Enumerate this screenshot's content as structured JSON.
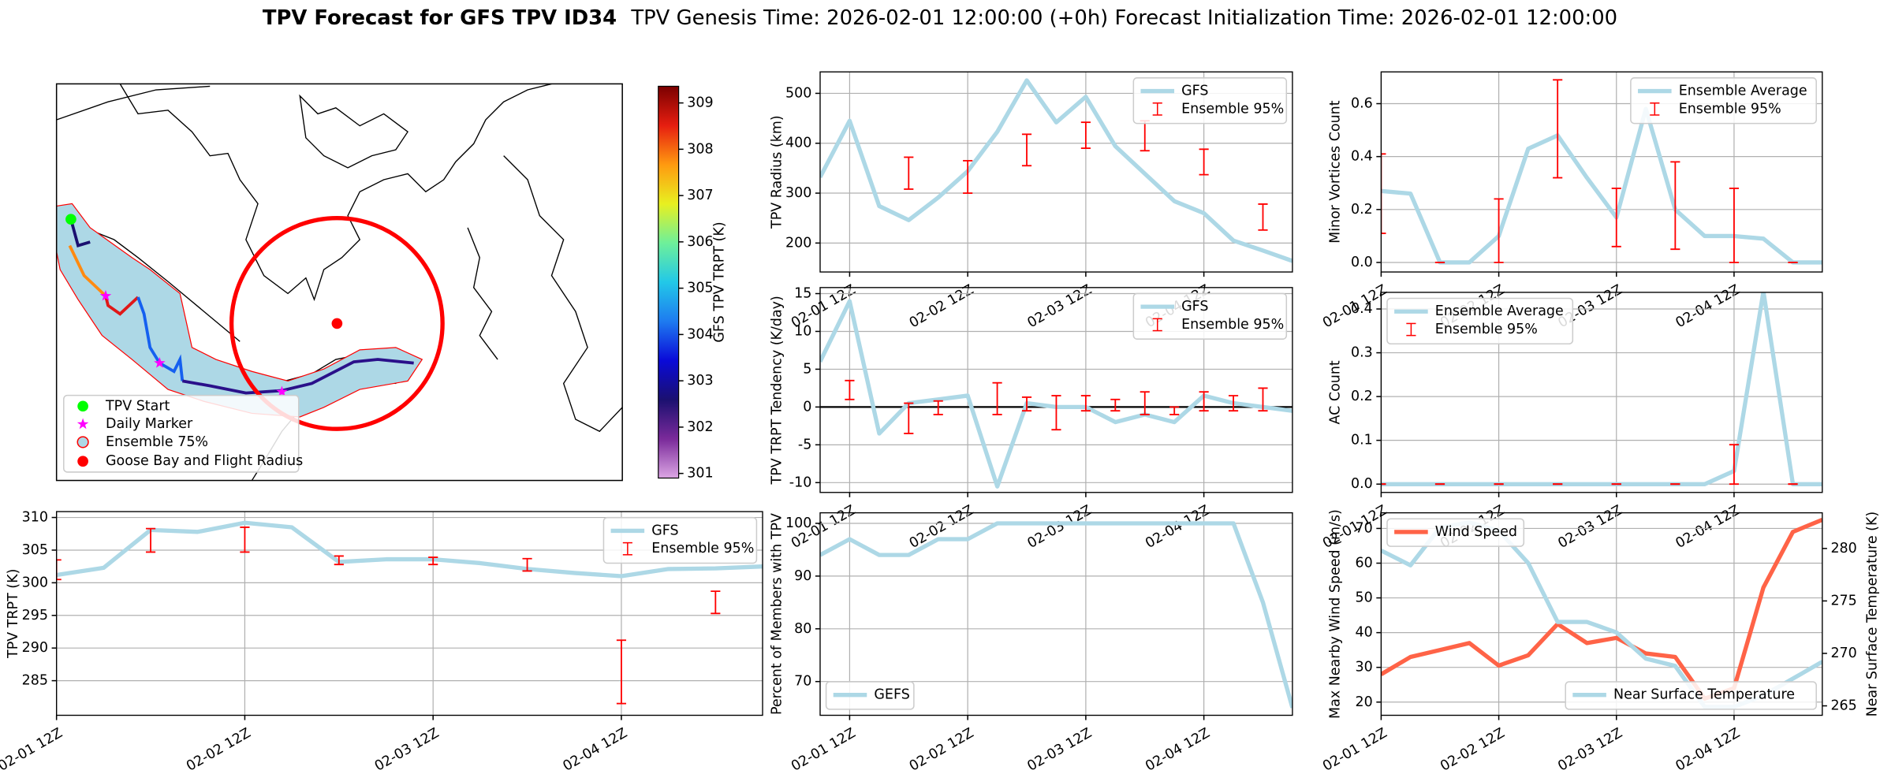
{
  "title": "TPV Forecast for GFS TPV ID34",
  "subtitle": "TPV Genesis Time: 2026-02-01 12:00:00 (+0h)   Forecast Initialization Time: 2026-02-01 12:00:00",
  "chart_data": [
    {
      "type": "map",
      "clabel": "GFS TPV TRPT (K)",
      "clim": [
        300.9,
        309.36
      ],
      "cticks": [
        301,
        302,
        303,
        304,
        305,
        306,
        307,
        308,
        309
      ],
      "cmap": [
        "#dca6e4",
        "#7a2a9a",
        "#1b1070",
        "#0a0ad8",
        "#1e7bf0",
        "#22c8e8",
        "#6ef09a",
        "#e8f020",
        "#ff9a10",
        "#e61e10",
        "#7a0000"
      ],
      "legend": [
        "TPV Start",
        "Daily Marker",
        "Ensemble 75%",
        "Goose Bay and Flight Radius"
      ]
    },
    {
      "type": "line",
      "ylabel": "TPV TRPT (K)",
      "grid": true,
      "legend": "upper right",
      "x": [
        "02-01 12Z",
        "02-01 18Z",
        "02-02 00Z",
        "02-02 06Z",
        "02-02 12Z",
        "02-02 18Z",
        "02-03 00Z",
        "02-03 06Z",
        "02-03 12Z",
        "02-03 18Z",
        "02-04 00Z",
        "02-04 06Z",
        "02-04 12Z",
        "02-04 18Z",
        "02-05 00Z",
        "02-05 06Z"
      ],
      "xlim": [
        "02-01 12Z",
        "02-05 06Z"
      ],
      "xticks": [
        "02-01 12Z",
        "02-02 12Z",
        "02-03 12Z",
        "02-04 12Z"
      ],
      "ylim": [
        279.7,
        310.9
      ],
      "yticks": [
        285,
        290,
        295,
        300,
        305,
        310
      ],
      "series": [
        {
          "name": "GFS",
          "color": "#add8e6",
          "values": [
            301.2,
            302.3,
            308.1,
            307.8,
            309.2,
            308.5,
            303.2,
            303.6,
            303.6,
            303.0,
            302.1,
            301.5,
            301.0,
            302.1,
            302.2,
            302.5
          ]
        },
        {
          "name": "Ensemble 95%",
          "color": "#ff0000",
          "x": [
            "02-01 12Z",
            "02-02 00Z",
            "02-02 12Z",
            "02-03 00Z",
            "02-03 12Z",
            "02-04 00Z",
            "02-04 12Z",
            "02-05 00Z"
          ],
          "low": [
            300.5,
            304.7,
            304.7,
            302.8,
            302.8,
            301.8,
            281.5,
            295.3
          ],
          "high": [
            303.5,
            308.3,
            308.5,
            304.1,
            303.9,
            303.7,
            291.2,
            298.7
          ]
        }
      ]
    },
    {
      "type": "line",
      "ylabel": "TPV Radius (km)",
      "grid": true,
      "legend": "upper right",
      "x": [
        "02-01 06Z",
        "02-01 12Z",
        "02-01 18Z",
        "02-02 00Z",
        "02-02 06Z",
        "02-02 12Z",
        "02-02 18Z",
        "02-03 00Z",
        "02-03 06Z",
        "02-03 12Z",
        "02-03 18Z",
        "02-04 00Z",
        "02-04 06Z",
        "02-04 12Z",
        "02-04 18Z",
        "02-05 00Z",
        "02-05 06Z"
      ],
      "xlim": [
        "02-01 06Z",
        "02-05 06Z"
      ],
      "xticks": [
        "02-01 12Z",
        "02-02 12Z",
        "02-03 12Z",
        "02-04 12Z"
      ],
      "ylim": [
        142,
        543
      ],
      "yticks": [
        200,
        300,
        400,
        500
      ],
      "series": [
        {
          "name": "GFS",
          "color": "#add8e6",
          "values": [
            332,
            445,
            274,
            246,
            291,
            344,
            423,
            526,
            442,
            493,
            394,
            339,
            284,
            260,
            205,
            185,
            164
          ]
        },
        {
          "name": "Ensemble 95%",
          "color": "#ff0000",
          "x": [
            "02-02 00Z",
            "02-02 12Z",
            "02-03 00Z",
            "02-03 12Z",
            "02-04 00Z",
            "02-04 12Z",
            "02-05 00Z"
          ],
          "low": [
            308,
            300,
            355,
            390,
            385,
            337,
            226
          ],
          "high": [
            372,
            365,
            418,
            442,
            445,
            388,
            278
          ]
        }
      ]
    },
    {
      "type": "line",
      "ylabel": "TPV TRPT Tendency (K/day)",
      "grid": true,
      "legend": "upper right",
      "hline": 0,
      "x": [
        "02-01 06Z",
        "02-01 12Z",
        "02-01 18Z",
        "02-02 00Z",
        "02-02 06Z",
        "02-02 12Z",
        "02-02 18Z",
        "02-03 00Z",
        "02-03 06Z",
        "02-03 12Z",
        "02-03 18Z",
        "02-04 00Z",
        "02-04 06Z",
        "02-04 12Z",
        "02-04 18Z",
        "02-05 00Z",
        "02-05 06Z"
      ],
      "xlim": [
        "02-01 06Z",
        "02-05 06Z"
      ],
      "xticks": [
        "02-01 12Z",
        "02-02 12Z",
        "02-03 12Z",
        "02-04 12Z"
      ],
      "ylim": [
        -11.3,
        15.8
      ],
      "yticks": [
        -10,
        -5,
        0,
        5,
        10,
        15
      ],
      "series": [
        {
          "name": "GFS",
          "color": "#add8e6",
          "values": [
            6,
            14,
            -3.5,
            0.5,
            1,
            1.5,
            -10.5,
            0.5,
            0,
            0,
            -2,
            -1,
            -2,
            1.5,
            0.5,
            0,
            -0.5
          ]
        },
        {
          "name": "Ensemble 95%",
          "color": "#ff0000",
          "x": [
            "02-01 12Z",
            "02-02 00Z",
            "02-02 06Z",
            "02-02 18Z",
            "02-03 00Z",
            "02-03 06Z",
            "02-03 12Z",
            "02-03 18Z",
            "02-04 00Z",
            "02-04 06Z",
            "02-04 12Z",
            "02-04 18Z",
            "02-05 00Z"
          ],
          "low": [
            1,
            -3.5,
            -1,
            -1,
            -0.5,
            -3,
            -0.5,
            -0.5,
            -1,
            -1,
            -0.5,
            -0.5,
            -0.5
          ],
          "high": [
            3.5,
            0.5,
            0.8,
            3.2,
            1.3,
            1.5,
            1.5,
            1,
            2,
            0,
            2,
            1.5,
            2.5
          ]
        }
      ]
    },
    {
      "type": "line",
      "ylabel": "Percent of Members with TPV",
      "grid": true,
      "legend": "lower left",
      "x": [
        "02-01 06Z",
        "02-01 12Z",
        "02-01 18Z",
        "02-02 00Z",
        "02-02 06Z",
        "02-02 12Z",
        "02-02 18Z",
        "02-03 00Z",
        "02-03 06Z",
        "02-03 12Z",
        "02-03 18Z",
        "02-04 00Z",
        "02-04 06Z",
        "02-04 12Z",
        "02-04 18Z",
        "02-05 00Z",
        "02-05 06Z"
      ],
      "xlim": [
        "02-01 06Z",
        "02-05 06Z"
      ],
      "xticks": [
        "02-01 12Z",
        "02-02 12Z",
        "02-03 12Z",
        "02-04 12Z"
      ],
      "ylim": [
        63.6,
        102
      ],
      "yticks": [
        70,
        80,
        90,
        100
      ],
      "series": [
        {
          "name": "GEFS",
          "color": "#add8e6",
          "values": [
            94,
            97,
            94,
            94,
            97,
            97,
            100,
            100,
            100,
            100,
            100,
            100,
            100,
            100,
            100,
            85,
            65
          ]
        }
      ]
    },
    {
      "type": "line",
      "ylabel": "Minor Vortices Count",
      "grid": true,
      "legend": "upper right",
      "x": [
        "02-01 12Z",
        "02-01 18Z",
        "02-02 00Z",
        "02-02 06Z",
        "02-02 12Z",
        "02-02 18Z",
        "02-03 00Z",
        "02-03 06Z",
        "02-03 12Z",
        "02-03 18Z",
        "02-04 00Z",
        "02-04 06Z",
        "02-04 12Z",
        "02-04 18Z",
        "02-05 00Z",
        "02-05 06Z"
      ],
      "xlim": [
        "02-01 12Z",
        "02-05 06Z"
      ],
      "xticks": [
        "02-01 12Z",
        "02-02 12Z",
        "02-03 12Z",
        "02-04 12Z"
      ],
      "ylim": [
        -0.036,
        0.72
      ],
      "yticks": [
        {
          "value": 0,
          "label": "0.0"
        },
        0.2,
        0.4,
        0.6
      ],
      "series": [
        {
          "name": "Ensemble Average",
          "color": "#add8e6",
          "values": [
            0.27,
            0.26,
            0,
            0,
            0.1,
            0.43,
            0.48,
            0.32,
            0.17,
            0.58,
            0.2,
            0.1,
            0.1,
            0.09,
            0,
            0
          ]
        },
        {
          "name": "Ensemble 95%",
          "color": "#ff0000",
          "x": [
            "02-01 12Z",
            "02-02 00Z",
            "02-02 12Z",
            "02-03 00Z",
            "02-03 12Z",
            "02-04 00Z",
            "02-04 12Z",
            "02-05 00Z"
          ],
          "low": [
            0.11,
            0,
            0,
            0.32,
            0.06,
            0.05,
            0,
            0
          ],
          "high": [
            0.41,
            0,
            0.24,
            0.69,
            0.28,
            0.38,
            0.28,
            0
          ]
        }
      ]
    },
    {
      "type": "line",
      "ylabel": "AC Count",
      "grid": true,
      "legend": "upper left",
      "x": [
        "02-01 12Z",
        "02-01 18Z",
        "02-02 00Z",
        "02-02 06Z",
        "02-02 12Z",
        "02-02 18Z",
        "02-03 00Z",
        "02-03 06Z",
        "02-03 12Z",
        "02-03 18Z",
        "02-04 00Z",
        "02-04 06Z",
        "02-04 12Z",
        "02-04 18Z",
        "02-05 00Z",
        "02-05 06Z"
      ],
      "xlim": [
        "02-01 12Z",
        "02-05 06Z"
      ],
      "xticks": [
        "02-01 12Z",
        "02-02 12Z",
        "02-03 12Z",
        "02-04 12Z"
      ],
      "ylim": [
        -0.019,
        0.438
      ],
      "yticks": [
        {
          "value": 0,
          "label": "0.0"
        },
        0.1,
        0.2,
        0.3,
        0.4
      ],
      "series": [
        {
          "name": "Ensemble Average",
          "color": "#add8e6",
          "values": [
            0,
            0,
            0,
            0,
            0,
            0,
            0,
            0,
            0,
            0,
            0,
            0,
            0.03,
            0.44,
            0,
            0
          ]
        },
        {
          "name": "Ensemble 95%",
          "color": "#ff0000",
          "x": [
            "02-01 12Z",
            "02-02 00Z",
            "02-02 12Z",
            "02-03 00Z",
            "02-03 12Z",
            "02-04 00Z",
            "02-04 12Z",
            "02-05 00Z"
          ],
          "low": [
            0,
            0,
            0,
            0,
            0,
            0,
            0,
            0
          ],
          "high": [
            0,
            0,
            0,
            0,
            0,
            0,
            0.09,
            0
          ]
        }
      ]
    },
    {
      "type": "line",
      "ylabel": "Max Nearby Wind Speed (m/s)",
      "ylabel_color": "#ff6347",
      "y2label": "Near Surface Temperature (K)",
      "y2label_color": "#4169e1",
      "grid": true,
      "legend": "upper left",
      "legend2": "lower right",
      "x": [
        "02-01 12Z",
        "02-01 18Z",
        "02-02 00Z",
        "02-02 06Z",
        "02-02 12Z",
        "02-02 18Z",
        "02-03 00Z",
        "02-03 06Z",
        "02-03 12Z",
        "02-03 18Z",
        "02-04 00Z",
        "02-04 06Z",
        "02-04 12Z",
        "02-04 18Z",
        "02-05 00Z",
        "02-05 06Z"
      ],
      "xlim": [
        "02-01 12Z",
        "02-05 06Z"
      ],
      "xticks": [
        "02-01 12Z",
        "02-02 12Z",
        "02-03 12Z",
        "02-04 12Z"
      ],
      "ylim": [
        16.2,
        74.5
      ],
      "yticks": [
        20,
        30,
        40,
        50,
        60,
        70
      ],
      "y2lim": [
        264.1,
        283.4
      ],
      "y2ticks": [
        265,
        270,
        275,
        280
      ],
      "series": [
        {
          "name": "Wind Speed",
          "color": "#ff6347",
          "values": [
            28,
            33,
            35,
            37,
            30.5,
            33.5,
            42.5,
            37,
            38.5,
            34,
            33,
            21,
            24,
            53,
            69,
            72.5
          ]
        },
        {
          "name": "Near Surface Temperature",
          "color": "#add8e6",
          "axis": "y2",
          "values": [
            279.8,
            278.4,
            282,
            282.5,
            281.7,
            278.6,
            273,
            273,
            272,
            269.5,
            268.8,
            264.9,
            264.9,
            266,
            267.6,
            269.2
          ]
        }
      ]
    }
  ]
}
